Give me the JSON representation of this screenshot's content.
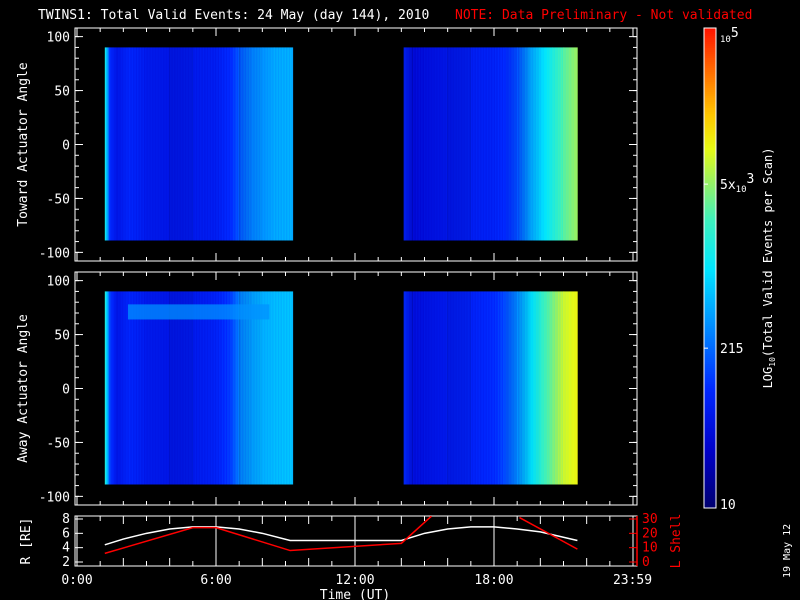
{
  "title": "TWINS1: Total Valid Events: 24 May (day 144), 2010",
  "note": "NOTE: Data Preliminary - Not validated",
  "side_date": "19 May 12",
  "colors": {
    "note": "#ff0000",
    "lshell": "#ff0000",
    "radius": "#ffffff"
  },
  "chart_data": [
    {
      "type": "heatmap",
      "title": "Toward Actuator Angle",
      "ylabel": "Toward Actuator Angle",
      "ylim": [
        -108,
        108
      ],
      "yticks": [
        "100",
        "50",
        "0",
        "-50",
        "-100"
      ],
      "ytick_values": [
        100,
        50,
        0,
        -50,
        -100
      ],
      "data_yrange": [
        -89,
        90
      ],
      "xlim_hours": [
        0,
        24
      ],
      "blocks": [
        {
          "t": [
            1.2,
            1.4,
            1.7,
            2.2,
            3,
            4,
            5,
            6,
            6.6,
            7,
            7.5,
            8,
            8.5,
            9.3
          ],
          "log_value": [
            3.1,
            2.0,
            1.75,
            1.95,
            1.8,
            1.75,
            1.8,
            1.85,
            2.0,
            2.25,
            2.45,
            2.55,
            2.65,
            2.7
          ]
        },
        {
          "t": [
            14.1,
            14.5,
            15,
            16,
            17,
            18,
            18.5,
            19,
            19.5,
            20,
            20.5,
            21,
            21.6
          ],
          "log_value": [
            1.9,
            1.6,
            1.65,
            1.75,
            1.85,
            1.9,
            2.0,
            2.2,
            2.6,
            2.9,
            3.2,
            3.5,
            3.75
          ]
        }
      ]
    },
    {
      "type": "heatmap",
      "title": "Away Actuator Angle",
      "ylabel": "Away Actuator Angle",
      "ylim": [
        -108,
        108
      ],
      "yticks": [
        "100",
        "50",
        "0",
        "-50",
        "-100"
      ],
      "ytick_values": [
        100,
        50,
        0,
        -50,
        -100
      ],
      "data_yrange": [
        -89,
        90
      ],
      "xlim_hours": [
        0,
        24
      ],
      "band": {
        "t": [
          2.2,
          8.3
        ],
        "angle": [
          64,
          78
        ],
        "log_value": 2.55
      },
      "blocks": [
        {
          "t": [
            1.2,
            1.4,
            1.7,
            2.2,
            3,
            4,
            5,
            6,
            6.6,
            7,
            7.5,
            8,
            8.5,
            9.3
          ],
          "log_value": [
            3.2,
            2.1,
            1.75,
            1.95,
            1.8,
            1.75,
            1.8,
            1.9,
            2.1,
            2.45,
            2.6,
            2.7,
            2.75,
            2.8
          ]
        },
        {
          "t": [
            14.1,
            14.5,
            15,
            16,
            17,
            18,
            18.5,
            19,
            19.5,
            20,
            20.5,
            21,
            21.6
          ],
          "log_value": [
            2.0,
            1.65,
            1.7,
            1.8,
            1.9,
            2.0,
            2.2,
            2.5,
            2.9,
            3.3,
            3.6,
            3.9,
            4.05
          ]
        }
      ]
    },
    {
      "type": "line",
      "ylabel": "R [RE]",
      "ylabel_right": "L Shell",
      "ylim": [
        2,
        8
      ],
      "ylim_right": [
        0,
        30
      ],
      "yticks": [
        "8",
        "6",
        "4",
        "2"
      ],
      "ytick_values": [
        8,
        6,
        4,
        2
      ],
      "yticks_right": [
        "30",
        "20",
        "10",
        "0"
      ],
      "ytick_values_right": [
        30,
        20,
        10,
        0
      ],
      "xlabel": "Time (UT)",
      "xticks": [
        "0:00",
        "6:00",
        "12:00",
        "18:00",
        "23:59"
      ],
      "xtick_values": [
        0,
        6,
        12,
        18,
        23.98
      ],
      "series": [
        {
          "name": "R",
          "axis": "left",
          "t": [
            1.2,
            2,
            3,
            4,
            5,
            6,
            7,
            8,
            9.2,
            14,
            15,
            16,
            17,
            18,
            19,
            20,
            21.6
          ],
          "values": [
            4.4,
            5.2,
            6.0,
            6.6,
            6.9,
            6.9,
            6.6,
            6.0,
            5.0,
            5.0,
            6.0,
            6.6,
            6.9,
            6.9,
            6.6,
            6.2,
            5.0
          ]
        },
        {
          "name": "L Shell",
          "axis": "right",
          "t": [
            1.2,
            5,
            6,
            9.2,
            14,
            15.3
          ],
          "values": [
            6,
            24,
            24,
            8,
            13,
            32
          ]
        },
        {
          "name": "L Shell (2)",
          "axis": "right",
          "t": [
            19.1,
            21.6
          ],
          "values": [
            31,
            9
          ]
        }
      ]
    }
  ],
  "colorbar": {
    "label": "LOG10(Total Valid Events per Scan)",
    "label_main": "LOG",
    "label_sub": "10",
    "label_rest": "(Total Valid Events per Scan)",
    "range_log": [
      1,
      5
    ],
    "ticks": [
      {
        "base": "10",
        "exp": "5",
        "log": 5
      },
      {
        "base": "5x",
        "sub": "10",
        "exp": "3",
        "log": 3.699
      },
      {
        "base": "215",
        "log": 2.332
      },
      {
        "base": "10",
        "log": 1
      }
    ]
  }
}
